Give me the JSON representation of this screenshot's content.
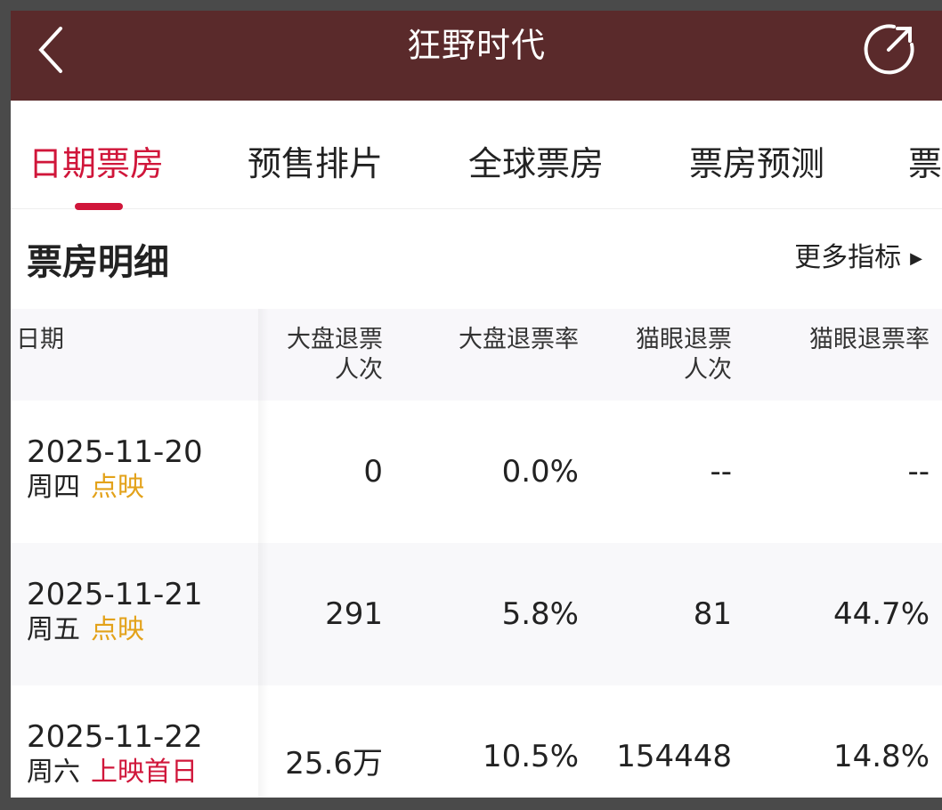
{
  "header": {
    "title": "狂野时代",
    "back_icon": "chevron-left-icon",
    "share_icon": "share-icon"
  },
  "tabs": [
    {
      "label": "日期票房",
      "active": true
    },
    {
      "label": "预售排片"
    },
    {
      "label": "全球票房"
    },
    {
      "label": "票房预测"
    },
    {
      "label": "票"
    }
  ],
  "section": {
    "title": "票房明细",
    "more_label": "更多指标",
    "more_icon": "triangle-right-icon"
  },
  "table": {
    "headers": [
      "日期",
      "大盘退票\n人次",
      "大盘退票率",
      "猫眼退票\n人次",
      "猫眼退票率"
    ],
    "rows": [
      {
        "date": "2025-11-20",
        "weekday": "周四",
        "tag": "点映",
        "tag_color": "#e3a21a",
        "cols": [
          "0",
          "0.0%",
          "--",
          "--"
        ]
      },
      {
        "date": "2025-11-21",
        "weekday": "周五",
        "tag": "点映",
        "tag_color": "#e3a21a",
        "cols": [
          "291",
          "5.8%",
          "81",
          "44.7%"
        ]
      },
      {
        "date": "2025-11-22",
        "weekday": "周六",
        "tag": "上映首日",
        "tag_color": "#d0163a",
        "cols": [
          "25.6万",
          "10.5%",
          "154448",
          "14.8%"
        ]
      }
    ]
  },
  "colors": {
    "topbar": "#5a2a2b",
    "accent": "#d0163a",
    "tag_preview": "#e3a21a"
  }
}
